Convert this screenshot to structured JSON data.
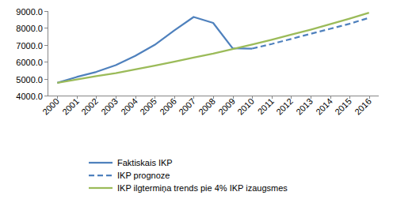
{
  "chart_data": {
    "type": "line",
    "categories": [
      "2000",
      "2001",
      "2002",
      "2003",
      "2004",
      "2005",
      "2006",
      "2007",
      "2008",
      "2009",
      "2010",
      "2011",
      "2012",
      "2013",
      "2014",
      "2015",
      "2016"
    ],
    "series": [
      {
        "name": "Faktiskais IKP",
        "color": "#4f81bd",
        "line_style": "solid",
        "values": [
          4750,
          5100,
          5400,
          5800,
          6350,
          7000,
          7850,
          8650,
          8300,
          6800,
          6780,
          null,
          null,
          null,
          null,
          null,
          null
        ]
      },
      {
        "name": "IKP prognoze",
        "color": "#4f81bd",
        "line_style": "dashed",
        "values": [
          null,
          null,
          null,
          null,
          null,
          null,
          null,
          null,
          null,
          null,
          6780,
          7050,
          7350,
          7650,
          7950,
          8250,
          8600
        ]
      },
      {
        "name": "IKP ilgtermiņa trends pie 4% IKP izaugsmes",
        "color": "#9bbb59",
        "line_style": "solid",
        "values": [
          4750,
          4950,
          5150,
          5330,
          5550,
          5770,
          6000,
          6250,
          6480,
          6750,
          7020,
          7300,
          7600,
          7900,
          8220,
          8550,
          8900
        ]
      }
    ],
    "ylim": [
      4000,
      9000
    ],
    "yticks": [
      {
        "value": 4000,
        "label": "4000.0"
      },
      {
        "value": 5000,
        "label": "5000.0"
      },
      {
        "value": 6000,
        "label": "6000.0"
      },
      {
        "value": 7000,
        "label": "7000.0"
      },
      {
        "value": 8000,
        "label": "8000.0"
      },
      {
        "value": 9000,
        "label": "9000.0"
      }
    ],
    "grid": false,
    "legend": "bottom"
  }
}
